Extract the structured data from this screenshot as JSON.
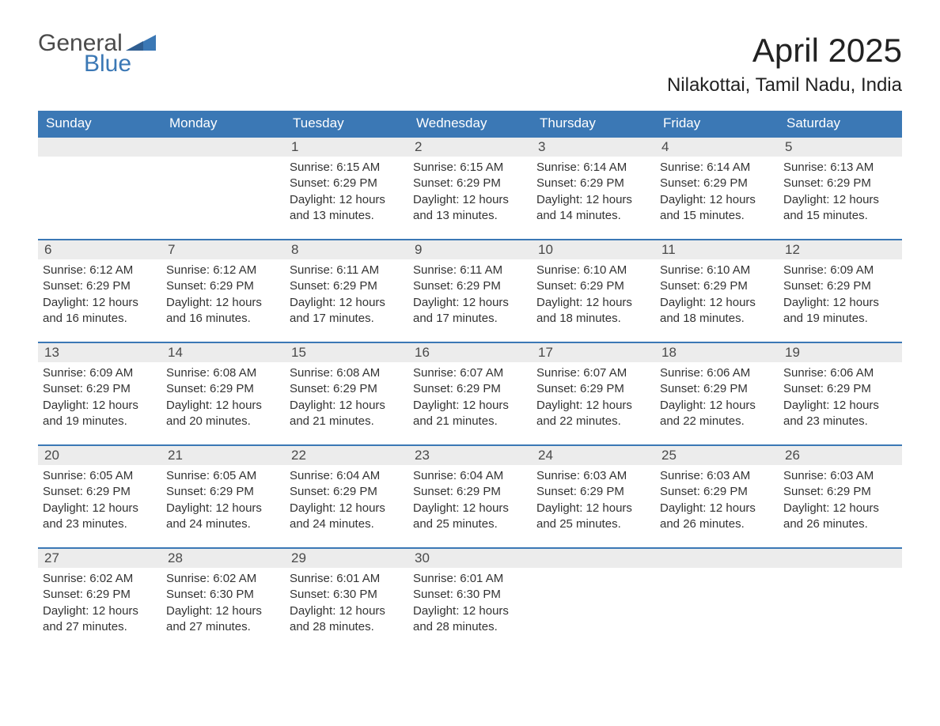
{
  "logo": {
    "word1": "General",
    "word2": "Blue"
  },
  "title": "April 2025",
  "subtitle": "Nilakottai, Tamil Nadu, India",
  "colors": {
    "header_bg": "#3b78b5",
    "header_text": "#ffffff",
    "daynum_bg": "#ececec",
    "row_border": "#3b78b5",
    "body_text": "#333333",
    "logo_gray": "#4a4a4a",
    "logo_blue": "#3b78b5",
    "page_bg": "#ffffff"
  },
  "weekdays": [
    "Sunday",
    "Monday",
    "Tuesday",
    "Wednesday",
    "Thursday",
    "Friday",
    "Saturday"
  ],
  "weeks": [
    [
      null,
      null,
      {
        "day": "1",
        "sunrise": "Sunrise: 6:15 AM",
        "sunset": "Sunset: 6:29 PM",
        "daylight": "Daylight: 12 hours and 13 minutes."
      },
      {
        "day": "2",
        "sunrise": "Sunrise: 6:15 AM",
        "sunset": "Sunset: 6:29 PM",
        "daylight": "Daylight: 12 hours and 13 minutes."
      },
      {
        "day": "3",
        "sunrise": "Sunrise: 6:14 AM",
        "sunset": "Sunset: 6:29 PM",
        "daylight": "Daylight: 12 hours and 14 minutes."
      },
      {
        "day": "4",
        "sunrise": "Sunrise: 6:14 AM",
        "sunset": "Sunset: 6:29 PM",
        "daylight": "Daylight: 12 hours and 15 minutes."
      },
      {
        "day": "5",
        "sunrise": "Sunrise: 6:13 AM",
        "sunset": "Sunset: 6:29 PM",
        "daylight": "Daylight: 12 hours and 15 minutes."
      }
    ],
    [
      {
        "day": "6",
        "sunrise": "Sunrise: 6:12 AM",
        "sunset": "Sunset: 6:29 PM",
        "daylight": "Daylight: 12 hours and 16 minutes."
      },
      {
        "day": "7",
        "sunrise": "Sunrise: 6:12 AM",
        "sunset": "Sunset: 6:29 PM",
        "daylight": "Daylight: 12 hours and 16 minutes."
      },
      {
        "day": "8",
        "sunrise": "Sunrise: 6:11 AM",
        "sunset": "Sunset: 6:29 PM",
        "daylight": "Daylight: 12 hours and 17 minutes."
      },
      {
        "day": "9",
        "sunrise": "Sunrise: 6:11 AM",
        "sunset": "Sunset: 6:29 PM",
        "daylight": "Daylight: 12 hours and 17 minutes."
      },
      {
        "day": "10",
        "sunrise": "Sunrise: 6:10 AM",
        "sunset": "Sunset: 6:29 PM",
        "daylight": "Daylight: 12 hours and 18 minutes."
      },
      {
        "day": "11",
        "sunrise": "Sunrise: 6:10 AM",
        "sunset": "Sunset: 6:29 PM",
        "daylight": "Daylight: 12 hours and 18 minutes."
      },
      {
        "day": "12",
        "sunrise": "Sunrise: 6:09 AM",
        "sunset": "Sunset: 6:29 PM",
        "daylight": "Daylight: 12 hours and 19 minutes."
      }
    ],
    [
      {
        "day": "13",
        "sunrise": "Sunrise: 6:09 AM",
        "sunset": "Sunset: 6:29 PM",
        "daylight": "Daylight: 12 hours and 19 minutes."
      },
      {
        "day": "14",
        "sunrise": "Sunrise: 6:08 AM",
        "sunset": "Sunset: 6:29 PM",
        "daylight": "Daylight: 12 hours and 20 minutes."
      },
      {
        "day": "15",
        "sunrise": "Sunrise: 6:08 AM",
        "sunset": "Sunset: 6:29 PM",
        "daylight": "Daylight: 12 hours and 21 minutes."
      },
      {
        "day": "16",
        "sunrise": "Sunrise: 6:07 AM",
        "sunset": "Sunset: 6:29 PM",
        "daylight": "Daylight: 12 hours and 21 minutes."
      },
      {
        "day": "17",
        "sunrise": "Sunrise: 6:07 AM",
        "sunset": "Sunset: 6:29 PM",
        "daylight": "Daylight: 12 hours and 22 minutes."
      },
      {
        "day": "18",
        "sunrise": "Sunrise: 6:06 AM",
        "sunset": "Sunset: 6:29 PM",
        "daylight": "Daylight: 12 hours and 22 minutes."
      },
      {
        "day": "19",
        "sunrise": "Sunrise: 6:06 AM",
        "sunset": "Sunset: 6:29 PM",
        "daylight": "Daylight: 12 hours and 23 minutes."
      }
    ],
    [
      {
        "day": "20",
        "sunrise": "Sunrise: 6:05 AM",
        "sunset": "Sunset: 6:29 PM",
        "daylight": "Daylight: 12 hours and 23 minutes."
      },
      {
        "day": "21",
        "sunrise": "Sunrise: 6:05 AM",
        "sunset": "Sunset: 6:29 PM",
        "daylight": "Daylight: 12 hours and 24 minutes."
      },
      {
        "day": "22",
        "sunrise": "Sunrise: 6:04 AM",
        "sunset": "Sunset: 6:29 PM",
        "daylight": "Daylight: 12 hours and 24 minutes."
      },
      {
        "day": "23",
        "sunrise": "Sunrise: 6:04 AM",
        "sunset": "Sunset: 6:29 PM",
        "daylight": "Daylight: 12 hours and 25 minutes."
      },
      {
        "day": "24",
        "sunrise": "Sunrise: 6:03 AM",
        "sunset": "Sunset: 6:29 PM",
        "daylight": "Daylight: 12 hours and 25 minutes."
      },
      {
        "day": "25",
        "sunrise": "Sunrise: 6:03 AM",
        "sunset": "Sunset: 6:29 PM",
        "daylight": "Daylight: 12 hours and 26 minutes."
      },
      {
        "day": "26",
        "sunrise": "Sunrise: 6:03 AM",
        "sunset": "Sunset: 6:29 PM",
        "daylight": "Daylight: 12 hours and 26 minutes."
      }
    ],
    [
      {
        "day": "27",
        "sunrise": "Sunrise: 6:02 AM",
        "sunset": "Sunset: 6:29 PM",
        "daylight": "Daylight: 12 hours and 27 minutes."
      },
      {
        "day": "28",
        "sunrise": "Sunrise: 6:02 AM",
        "sunset": "Sunset: 6:30 PM",
        "daylight": "Daylight: 12 hours and 27 minutes."
      },
      {
        "day": "29",
        "sunrise": "Sunrise: 6:01 AM",
        "sunset": "Sunset: 6:30 PM",
        "daylight": "Daylight: 12 hours and 28 minutes."
      },
      {
        "day": "30",
        "sunrise": "Sunrise: 6:01 AM",
        "sunset": "Sunset: 6:30 PM",
        "daylight": "Daylight: 12 hours and 28 minutes."
      },
      null,
      null,
      null
    ]
  ]
}
